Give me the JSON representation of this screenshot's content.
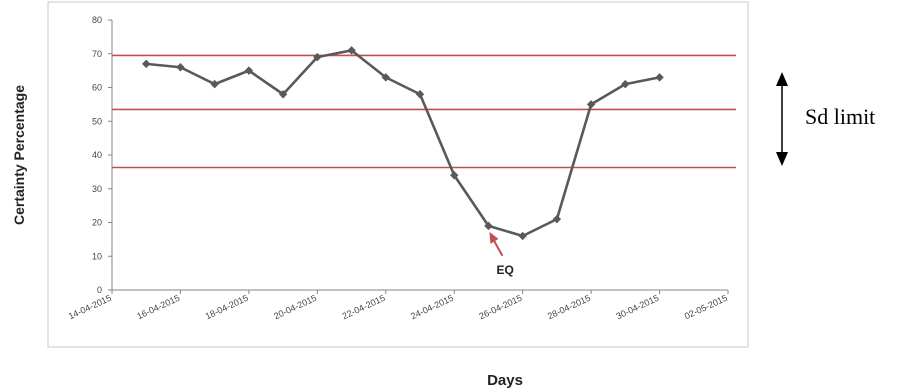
{
  "chart_data": {
    "type": "line",
    "title": "",
    "xlabel": "Days",
    "ylabel": "Certainty Percentage",
    "ylim": [
      0,
      80
    ],
    "yticks": [
      0,
      10,
      20,
      30,
      40,
      50,
      60,
      70,
      80
    ],
    "xticks": [
      "14-04-2015",
      "16-04-2015",
      "18-04-2015",
      "20-04-2015",
      "22-04-2015",
      "24-04-2015",
      "26-04-2015",
      "28-04-2015",
      "30-04-2015",
      "02-05-2015"
    ],
    "xlim": [
      "14-04-2015",
      "02-05-2015"
    ],
    "grid": false,
    "legend": "none",
    "series": [
      {
        "x": [
          "15-04-2015",
          "16-04-2015",
          "17-04-2015",
          "18-04-2015",
          "19-04-2015",
          "20-04-2015",
          "21-04-2015",
          "22-04-2015",
          "23-04-2015",
          "24-04-2015",
          "25-04-2015",
          "26-04-2015",
          "27-04-2015",
          "28-04-2015",
          "29-04-2015",
          "30-04-2015"
        ],
        "values": [
          67,
          66,
          61,
          65,
          58,
          69,
          71,
          63,
          58,
          34,
          19,
          16,
          21,
          55,
          61,
          63
        ],
        "color": "#595959",
        "marker": "diamond"
      }
    ],
    "reference_lines": [
      {
        "y": 69.5,
        "color": "#c0504d"
      },
      {
        "y": 53.5,
        "color": "#c0504d"
      },
      {
        "y": 36.3,
        "color": "#c0504d"
      }
    ],
    "annotations": [
      {
        "text": "EQ",
        "x": "25-04-2015",
        "y": 19,
        "arrow_color": "#c0504d"
      }
    ],
    "side_label": {
      "text": "Sd limit"
    }
  }
}
